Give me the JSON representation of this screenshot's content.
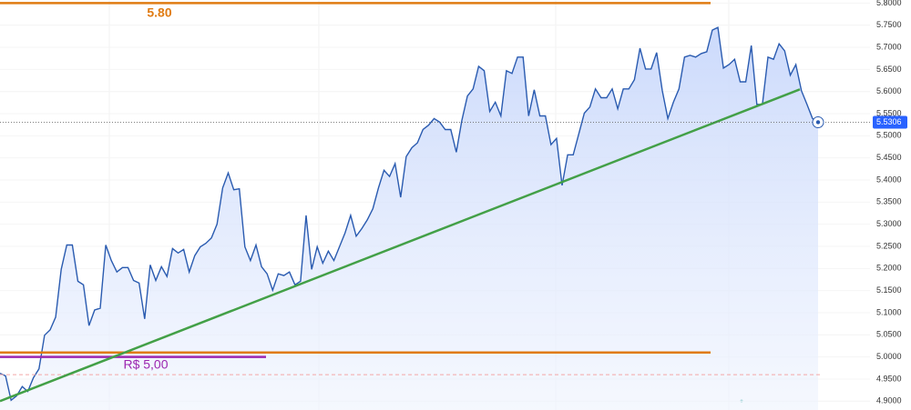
{
  "chart_data": {
    "type": "area",
    "values": [
      4.963,
      4.957,
      4.902,
      4.912,
      4.933,
      4.922,
      4.953,
      4.973,
      5.049,
      5.061,
      5.09,
      5.198,
      5.253,
      5.253,
      5.171,
      5.163,
      5.071,
      5.106,
      5.11,
      5.253,
      5.218,
      5.192,
      5.202,
      5.202,
      5.173,
      5.167,
      5.086,
      5.208,
      5.173,
      5.204,
      5.182,
      5.245,
      5.235,
      5.243,
      5.192,
      5.229,
      5.249,
      5.257,
      5.269,
      5.3,
      5.382,
      5.416,
      5.378,
      5.38,
      5.249,
      5.218,
      5.253,
      5.204,
      5.188,
      5.151,
      5.188,
      5.184,
      5.192,
      5.163,
      5.171,
      5.32,
      5.198,
      5.249,
      5.212,
      5.239,
      5.218,
      5.249,
      5.28,
      5.32,
      5.273,
      5.29,
      5.31,
      5.335,
      5.382,
      5.422,
      5.408,
      5.437,
      5.361,
      5.453,
      5.473,
      5.484,
      5.514,
      5.524,
      5.539,
      5.531,
      5.514,
      5.514,
      5.463,
      5.535,
      5.59,
      5.606,
      5.657,
      5.647,
      5.555,
      5.576,
      5.545,
      5.647,
      5.641,
      5.678,
      5.678,
      5.545,
      5.604,
      5.545,
      5.545,
      5.48,
      5.494,
      5.388,
      5.457,
      5.457,
      5.504,
      5.551,
      5.565,
      5.606,
      5.586,
      5.586,
      5.606,
      5.561,
      5.606,
      5.606,
      5.627,
      5.698,
      5.651,
      5.651,
      5.688,
      5.602,
      5.539,
      5.576,
      5.606,
      5.678,
      5.682,
      5.678,
      5.686,
      5.69,
      5.739,
      5.745,
      5.653,
      5.661,
      5.673,
      5.622,
      5.622,
      5.704,
      5.571,
      5.571,
      5.678,
      5.673,
      5.708,
      5.692,
      5.637,
      5.661,
      5.602,
      5.571,
      5.539,
      5.5306
    ],
    "color": "#2a5bb0",
    "last_price": 5.5306,
    "price_label_color": "#2962ff",
    "ylim": [
      4.88,
      5.807
    ],
    "yticks": [
      {
        "value": 4.9,
        "label": "4.9000"
      },
      {
        "value": 4.95,
        "label": "4.9500"
      },
      {
        "value": 5.0,
        "label": "5.0000"
      },
      {
        "value": 5.05,
        "label": "5.0500"
      },
      {
        "value": 5.1,
        "label": "5.1000"
      },
      {
        "value": 5.15,
        "label": "5.1500"
      },
      {
        "value": 5.2,
        "label": "5.2000"
      },
      {
        "value": 5.25,
        "label": "5.2500"
      },
      {
        "value": 5.3,
        "label": "5.3000"
      },
      {
        "value": 5.35,
        "label": "5.3500"
      },
      {
        "value": 5.4,
        "label": "5.4000"
      },
      {
        "value": 5.45,
        "label": "5.4500"
      },
      {
        "value": 5.5,
        "label": "5.5000"
      },
      {
        "value": 5.55,
        "label": "5.5500"
      },
      {
        "value": 5.6,
        "label": "5.6000"
      },
      {
        "value": 5.65,
        "label": "5.6500"
      },
      {
        "value": 5.7,
        "label": "5.7000"
      },
      {
        "value": 5.75,
        "label": "5.7500"
      },
      {
        "value": 5.8,
        "label": "5.8000"
      }
    ],
    "levels": [
      {
        "value": 5.8,
        "label": "5.80",
        "color": "#e07b12"
      },
      {
        "value": 5.01,
        "color": "#e07b12"
      },
      {
        "value": 5.0,
        "label": "R$ 5,00",
        "color": "#9c27b0"
      },
      {
        "value": 4.96,
        "color": "#f4a6a6",
        "dashed": true
      }
    ],
    "trendline": {
      "values": [
        4.9,
        5.605
      ],
      "color": "#43a047"
    }
  }
}
